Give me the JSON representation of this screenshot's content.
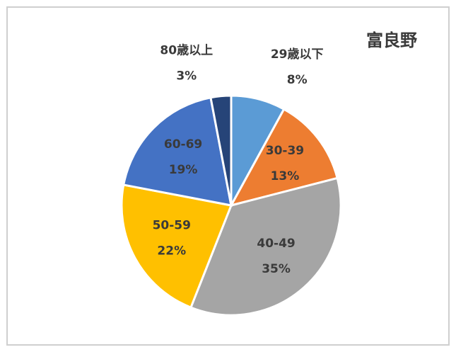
{
  "chart_data": {
    "type": "pie",
    "title": "富良野",
    "categories": [
      "29歳以下",
      "30-39",
      "40-49",
      "50-59",
      "60-69",
      "80歳以上"
    ],
    "values": [
      8,
      13,
      35,
      22,
      19,
      3
    ],
    "value_labels": [
      "8%",
      "13%",
      "35%",
      "22%",
      "19%",
      "3%"
    ],
    "colors": [
      "#5b9bd5",
      "#ed7d31",
      "#a5a5a5",
      "#ffc000",
      "#4472c4",
      "#264478"
    ]
  }
}
